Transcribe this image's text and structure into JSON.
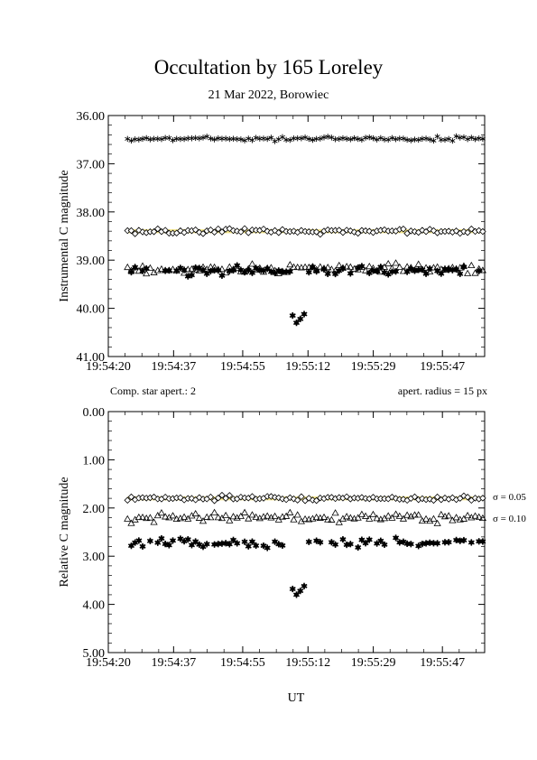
{
  "header": {
    "title": "Occultation by 165 Loreley",
    "subtitle": "21 Mar 2022, Borowiec"
  },
  "notes": {
    "comp_star": "Comp. star apert.: 2",
    "aperture": "apert. radius = 15 px",
    "sigma_1": "σ = 0.05",
    "sigma_2": "σ = 0.10",
    "xlabel": "UT"
  },
  "chart_data": [
    {
      "type": "scatter",
      "ylabel": "Instrumental C magnitude",
      "xlabel": "",
      "yinverted": true,
      "ylim": [
        36.0,
        41.0
      ],
      "yticks": [
        "36.00",
        "37.00",
        "38.00",
        "39.00",
        "40.00",
        "41.00"
      ],
      "xticks": [
        "19:54:20",
        "19:54:37",
        "19:54:55",
        "19:55:12",
        "19:55:29",
        "19:55:47"
      ],
      "xlim_seconds_span": 98,
      "series": [
        {
          "marker": "asterisk",
          "color": "#000000",
          "mean": 36.48,
          "scatter": 0.04
        },
        {
          "marker": "diamond-open",
          "color": "#000000",
          "mean": 38.4,
          "scatter": 0.04,
          "band_color": "#f2e27a"
        },
        {
          "marker": "triangle-open",
          "color": "#000000",
          "mean": 39.18,
          "scatter": 0.07
        },
        {
          "marker": "asterisk-bold",
          "color": "#000000",
          "mean": 39.22,
          "scatter": 0.08,
          "event": {
            "x_start": "19:55:08",
            "x_end": "19:55:11",
            "values": [
              40.15,
              40.3,
              40.22,
              40.12
            ]
          }
        }
      ]
    },
    {
      "type": "scatter",
      "ylabel": "Relative C magnitude",
      "xlabel": "UT",
      "yinverted": true,
      "ylim": [
        0.0,
        5.0
      ],
      "yticks": [
        "0.00",
        "1.00",
        "2.00",
        "3.00",
        "4.00",
        "5.00"
      ],
      "xticks": [
        "19:54:20",
        "19:54:37",
        "19:54:55",
        "19:55:12",
        "19:55:29",
        "19:55:47"
      ],
      "xlim_seconds_span": 98,
      "series": [
        {
          "marker": "diamond-open",
          "color": "#000000",
          "mean": 1.8,
          "scatter": 0.04,
          "band_color": "#f2e27a"
        },
        {
          "marker": "triangle-open",
          "color": "#000000",
          "mean": 2.2,
          "scatter": 0.08
        },
        {
          "marker": "asterisk-bold",
          "color": "#000000",
          "mean": 2.72,
          "scatter": 0.08,
          "event": {
            "x_start": "19:55:08",
            "x_end": "19:55:11",
            "values": [
              3.68,
              3.8,
              3.72,
              3.62
            ]
          }
        }
      ]
    }
  ]
}
